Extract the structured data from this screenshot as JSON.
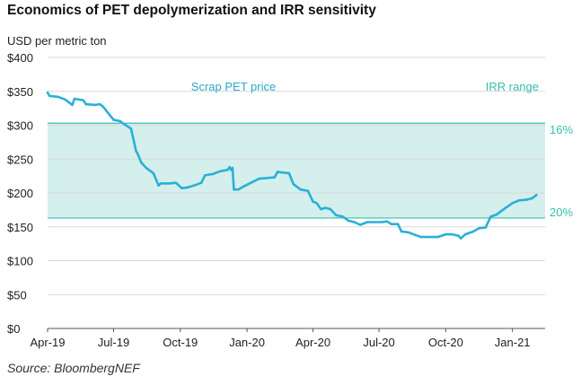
{
  "chart_data": {
    "type": "line",
    "title": "Economics of PET depolymerization and IRR sensitivity",
    "ylabel": "USD per metric ton",
    "ylim": [
      0,
      400
    ],
    "y_ticks": [
      0,
      50,
      100,
      150,
      200,
      250,
      300,
      350,
      400
    ],
    "y_tick_labels": [
      "$0",
      "$50",
      "$100",
      "$150",
      "$200",
      "$250",
      "$300",
      "$350",
      "$400"
    ],
    "x_range": [
      "2019-04-01",
      "2021-02-15"
    ],
    "x_ticks": [
      {
        "date": "2019-04-01",
        "label": "Apr-19"
      },
      {
        "date": "2019-07-01",
        "label": "Jul-19"
      },
      {
        "date": "2019-10-01",
        "label": "Oct-19"
      },
      {
        "date": "2020-01-01",
        "label": "Jan-20"
      },
      {
        "date": "2020-04-01",
        "label": "Apr-20"
      },
      {
        "date": "2020-07-01",
        "label": "Jul-20"
      },
      {
        "date": "2020-10-01",
        "label": "Oct-20"
      },
      {
        "date": "2021-01-01",
        "label": "Jan-21"
      }
    ],
    "series": [
      {
        "name": "Scrap PET price",
        "color": "#2ab0d8",
        "points": [
          [
            "2019-04-01",
            348
          ],
          [
            "2019-04-04",
            343
          ],
          [
            "2019-04-15",
            342
          ],
          [
            "2019-04-25",
            338
          ],
          [
            "2019-05-05",
            330
          ],
          [
            "2019-05-08",
            339
          ],
          [
            "2019-05-20",
            337
          ],
          [
            "2019-05-24",
            331
          ],
          [
            "2019-06-06",
            330
          ],
          [
            "2019-06-12",
            331
          ],
          [
            "2019-06-16",
            328
          ],
          [
            "2019-06-25",
            316
          ],
          [
            "2019-07-01",
            308
          ],
          [
            "2019-07-10",
            306
          ],
          [
            "2019-07-15",
            302
          ],
          [
            "2019-07-25",
            295
          ],
          [
            "2019-08-01",
            262
          ],
          [
            "2019-08-04",
            256
          ],
          [
            "2019-08-08",
            245
          ],
          [
            "2019-08-15",
            237
          ],
          [
            "2019-08-25",
            229
          ],
          [
            "2019-09-01",
            211
          ],
          [
            "2019-09-04",
            214
          ],
          [
            "2019-09-15",
            214
          ],
          [
            "2019-09-25",
            215
          ],
          [
            "2019-10-03",
            207
          ],
          [
            "2019-10-10",
            208
          ],
          [
            "2019-10-20",
            211
          ],
          [
            "2019-10-30",
            215
          ],
          [
            "2019-11-04",
            226
          ],
          [
            "2019-11-15",
            228
          ],
          [
            "2019-11-25",
            232
          ],
          [
            "2019-12-05",
            234
          ],
          [
            "2019-12-08",
            238
          ],
          [
            "2019-12-10",
            234
          ],
          [
            "2019-12-12",
            237
          ],
          [
            "2019-12-14",
            205
          ],
          [
            "2019-12-20",
            205
          ],
          [
            "2019-12-28",
            210
          ],
          [
            "2020-01-10",
            217
          ],
          [
            "2020-01-18",
            221
          ],
          [
            "2020-01-28",
            222
          ],
          [
            "2020-02-08",
            223
          ],
          [
            "2020-02-12",
            231
          ],
          [
            "2020-02-28",
            229
          ],
          [
            "2020-03-05",
            213
          ],
          [
            "2020-03-15",
            205
          ],
          [
            "2020-03-25",
            203
          ],
          [
            "2020-04-01",
            187
          ],
          [
            "2020-04-06",
            185
          ],
          [
            "2020-04-12",
            176
          ],
          [
            "2020-04-18",
            178
          ],
          [
            "2020-04-25",
            176
          ],
          [
            "2020-05-03",
            167
          ],
          [
            "2020-05-12",
            165
          ],
          [
            "2020-05-20",
            159
          ],
          [
            "2020-05-28",
            157
          ],
          [
            "2020-06-05",
            153
          ],
          [
            "2020-06-15",
            157
          ],
          [
            "2020-06-25",
            157
          ],
          [
            "2020-07-05",
            157
          ],
          [
            "2020-07-12",
            158
          ],
          [
            "2020-07-18",
            154
          ],
          [
            "2020-07-27",
            154
          ],
          [
            "2020-08-01",
            143
          ],
          [
            "2020-08-10",
            142
          ],
          [
            "2020-08-20",
            138
          ],
          [
            "2020-08-28",
            135
          ],
          [
            "2020-09-10",
            135
          ],
          [
            "2020-09-20",
            135
          ],
          [
            "2020-10-01",
            139
          ],
          [
            "2020-10-10",
            139
          ],
          [
            "2020-10-18",
            137
          ],
          [
            "2020-10-22",
            133
          ],
          [
            "2020-10-28",
            139
          ],
          [
            "2020-11-08",
            143
          ],
          [
            "2020-11-16",
            148
          ],
          [
            "2020-11-25",
            149
          ],
          [
            "2020-12-02",
            165
          ],
          [
            "2020-12-10",
            168
          ],
          [
            "2020-12-20",
            176
          ],
          [
            "2021-01-01",
            185
          ],
          [
            "2021-01-10",
            189
          ],
          [
            "2021-01-20",
            190
          ],
          [
            "2021-01-28",
            192
          ],
          [
            "2021-02-03",
            197
          ]
        ]
      }
    ],
    "band": {
      "name": "IRR range",
      "color": "#d4efec",
      "line_color": "#34bfae",
      "upper": 303,
      "lower": 163,
      "upper_label": "16%",
      "lower_label": "20%"
    },
    "annotations": {
      "series_label": "Scrap PET price",
      "band_label": "IRR range"
    },
    "source": "Source: BloombergNEF"
  }
}
